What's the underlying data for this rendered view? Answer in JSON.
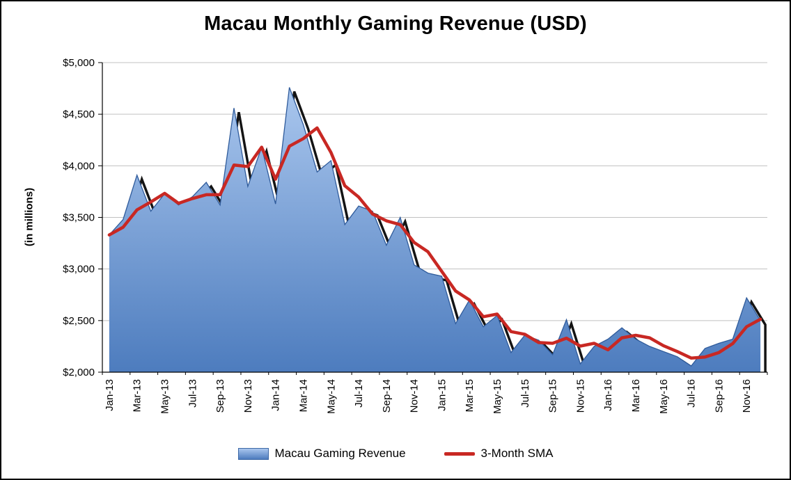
{
  "colors": {
    "area_top": "#aac7ee",
    "area_bottom": "#4d7cbe",
    "area_edge": "#2f5b9b",
    "sma_line": "#c82823",
    "gridline": "#c0c0c0",
    "shadow": "#000000",
    "axis": "#000000"
  },
  "chart_data": {
    "type": "area",
    "title": "Macau Monthly Gaming Revenue (USD)",
    "ylabel": "(in millions)",
    "xlabel": "",
    "ylim": [
      2000,
      5000
    ],
    "ytick_step": 500,
    "ytick_labels": [
      "$2,000",
      "$2,500",
      "$3,000",
      "$3,500",
      "$4,000",
      "$4,500",
      "$5,000"
    ],
    "xtick_every": 2,
    "grid": "horizontal",
    "legend_position": "bottom",
    "categories": [
      "Jan-13",
      "Feb-13",
      "Mar-13",
      "Apr-13",
      "May-13",
      "Jun-13",
      "Jul-13",
      "Aug-13",
      "Sep-13",
      "Oct-13",
      "Nov-13",
      "Dec-13",
      "Jan-14",
      "Feb-14",
      "Mar-14",
      "Apr-14",
      "May-14",
      "Jun-14",
      "Jul-14",
      "Aug-14",
      "Sep-14",
      "Oct-14",
      "Nov-14",
      "Dec-14",
      "Jan-15",
      "Feb-15",
      "Mar-15",
      "Apr-15",
      "May-15",
      "Jun-15",
      "Jul-15",
      "Aug-15",
      "Sep-15",
      "Oct-15",
      "Nov-15",
      "Dec-15",
      "Jan-16",
      "Feb-16",
      "Mar-16",
      "Apr-16",
      "May-16",
      "Jun-16",
      "Jul-16",
      "Aug-16",
      "Sep-16",
      "Oct-16",
      "Nov-16",
      "Dec-16"
    ],
    "series": [
      {
        "name": "Macau Gaming Revenue",
        "type": "area",
        "values": [
          3330,
          3480,
          3910,
          3560,
          3730,
          3620,
          3700,
          3840,
          3620,
          4560,
          3800,
          4180,
          3630,
          4760,
          4400,
          3940,
          4050,
          3430,
          3610,
          3560,
          3230,
          3500,
          3040,
          2960,
          2930,
          2470,
          2700,
          2440,
          2550,
          2190,
          2360,
          2310,
          2170,
          2510,
          2080,
          2250,
          2320,
          2430,
          2320,
          2250,
          2200,
          2150,
          2060,
          2230,
          2280,
          2320,
          2720,
          2500
        ]
      },
      {
        "name": "3-Month SMA",
        "type": "line",
        "values": [
          3330,
          3405,
          3573,
          3650,
          3733,
          3637,
          3683,
          3720,
          3720,
          4007,
          3993,
          4180,
          3870,
          4190,
          4263,
          4367,
          4130,
          3807,
          3697,
          3533,
          3467,
          3430,
          3257,
          3167,
          2977,
          2787,
          2700,
          2537,
          2563,
          2393,
          2367,
          2287,
          2280,
          2330,
          2253,
          2280,
          2217,
          2333,
          2357,
          2333,
          2257,
          2200,
          2137,
          2147,
          2190,
          2277,
          2440,
          2513
        ]
      }
    ]
  }
}
